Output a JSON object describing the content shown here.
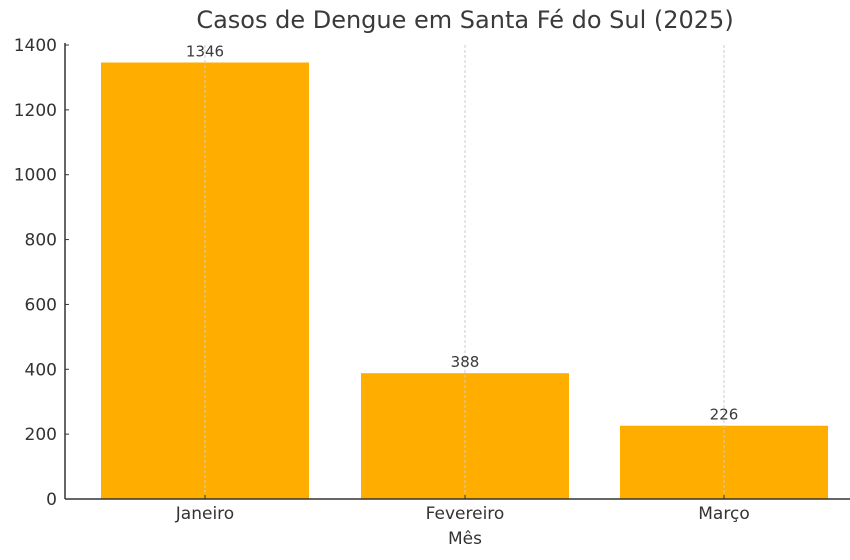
{
  "chart_data": {
    "type": "bar",
    "title": "Casos de Dengue em Santa Fé do Sul (2025)",
    "xlabel": "Mês",
    "ylabel": "",
    "categories": [
      "Janeiro",
      "Fevereiro",
      "Março"
    ],
    "values": [
      1346,
      388,
      226
    ],
    "value_labels": [
      "1346",
      "388",
      "226"
    ],
    "ylim": [
      0,
      1400
    ],
    "yticks": [
      0,
      200,
      400,
      600,
      800,
      1000,
      1200,
      1400
    ],
    "ytick_labels": [
      "0",
      "200",
      "400",
      "600",
      "800",
      "1000",
      "1200",
      "1400"
    ],
    "grid": {
      "x": true,
      "y": false,
      "style": "dashed"
    },
    "bar_color": "#FFAE00",
    "legend": null
  }
}
